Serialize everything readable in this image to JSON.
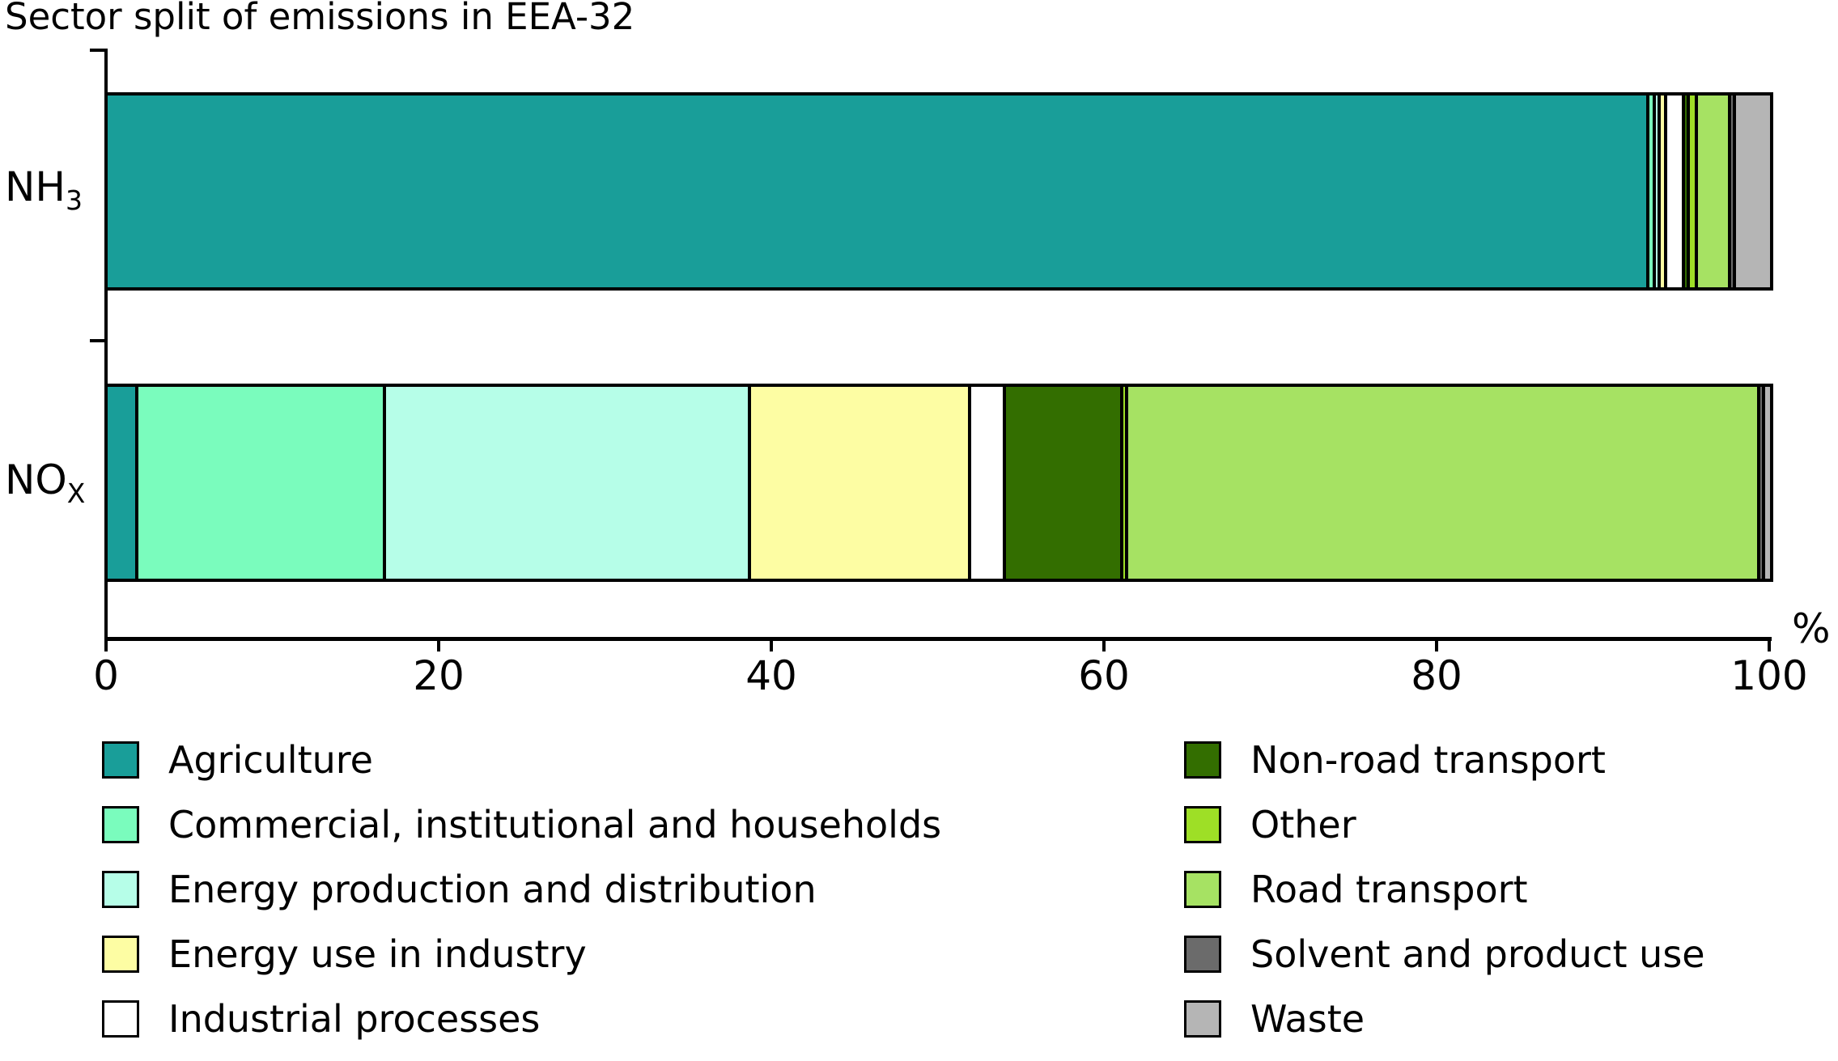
{
  "title": "Sector split of emissions in EEA-32",
  "axis": {
    "unit_label": "%",
    "ticks": [
      "0",
      "20",
      "40",
      "60",
      "80",
      "100"
    ]
  },
  "bar_labels": {
    "nh3": {
      "text": "NH",
      "subscript": "3"
    },
    "nox": {
      "text": "NO",
      "subscript": "X"
    }
  },
  "chart_data": {
    "type": "bar",
    "stacked": true,
    "orientation": "horizontal",
    "title": "Sector split of emissions in EEA-32",
    "xlabel": "%",
    "ylabel": "",
    "xlim": [
      0,
      100
    ],
    "xticks": [
      0,
      20,
      40,
      60,
      80,
      100
    ],
    "grid": false,
    "legend_position": "bottom",
    "categories": [
      "NH3",
      "NOx"
    ],
    "series": [
      {
        "name": "Agriculture",
        "color": "#199E99",
        "values": [
          93.9,
          1.7
        ]
      },
      {
        "name": "Commercial, institutional and households",
        "color": "#7AFCBD",
        "values": [
          0.2,
          14.9
        ]
      },
      {
        "name": "Energy production and distribution",
        "color": "#B6FEE8",
        "values": [
          0.1,
          22.1
        ]
      },
      {
        "name": "Energy use in industry",
        "color": "#FDFDA3",
        "values": [
          0.2,
          13.3
        ]
      },
      {
        "name": "Industrial processes",
        "color": "#FFFFFF",
        "values": [
          0.9,
          1.9
        ]
      },
      {
        "name": "Non-road transport",
        "color": "#336E00",
        "values": [
          0.1,
          7.0
        ]
      },
      {
        "name": "Other",
        "color": "#9EDF26",
        "values": [
          0.3,
          0.1
        ]
      },
      {
        "name": "Road transport",
        "color": "#A6E263",
        "values": [
          1.8,
          38.4
        ]
      },
      {
        "name": "Solvent and product use",
        "color": "#6B6B6B",
        "values": [
          0.1,
          0.1
        ]
      },
      {
        "name": "Waste",
        "color": "#B5B5B5",
        "values": [
          2.1,
          0.3
        ]
      }
    ]
  }
}
